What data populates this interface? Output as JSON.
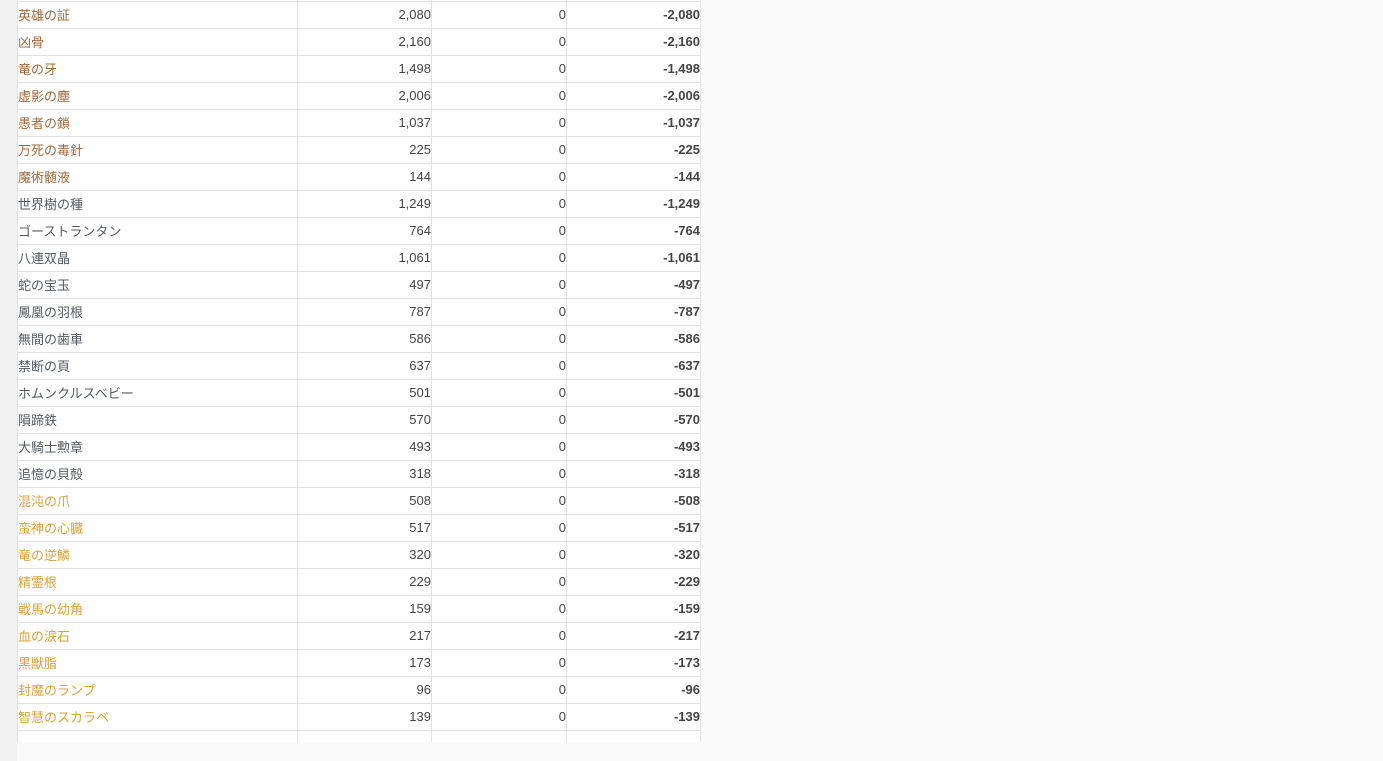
{
  "page": {
    "background": "#fafafa",
    "gutter_background": "#f2f2f2"
  },
  "table": {
    "border_color": "#e2e2e2",
    "row_background": "#ffffff",
    "number_color": "#444444",
    "shortage_color": "#ff0000",
    "name_colors": {
      "bronze": "#a0693c",
      "gray": "#555a62",
      "gold": "#d9a43e"
    },
    "columns": [
      "item-name",
      "required-quantity",
      "owned-quantity",
      "shortage"
    ],
    "rows": [
      {
        "name": "英雄の証",
        "rarity": "bronze",
        "required": "2,080",
        "owned": "0",
        "shortage": "-2,080"
      },
      {
        "name": "凶骨",
        "rarity": "bronze",
        "required": "2,160",
        "owned": "0",
        "shortage": "-2,160"
      },
      {
        "name": "竜の牙",
        "rarity": "bronze",
        "required": "1,498",
        "owned": "0",
        "shortage": "-1,498"
      },
      {
        "name": "虚影の塵",
        "rarity": "bronze",
        "required": "2,006",
        "owned": "0",
        "shortage": "-2,006"
      },
      {
        "name": "愚者の鎖",
        "rarity": "bronze",
        "required": "1,037",
        "owned": "0",
        "shortage": "-1,037"
      },
      {
        "name": "万死の毒針",
        "rarity": "bronze",
        "required": "225",
        "owned": "0",
        "shortage": "-225"
      },
      {
        "name": "魔術髄液",
        "rarity": "bronze",
        "required": "144",
        "owned": "0",
        "shortage": "-144"
      },
      {
        "name": "世界樹の種",
        "rarity": "gray",
        "required": "1,249",
        "owned": "0",
        "shortage": "-1,249"
      },
      {
        "name": "ゴーストランタン",
        "rarity": "gray",
        "required": "764",
        "owned": "0",
        "shortage": "-764"
      },
      {
        "name": "八連双晶",
        "rarity": "gray",
        "required": "1,061",
        "owned": "0",
        "shortage": "-1,061"
      },
      {
        "name": "蛇の宝玉",
        "rarity": "gray",
        "required": "497",
        "owned": "0",
        "shortage": "-497"
      },
      {
        "name": "鳳凰の羽根",
        "rarity": "gray",
        "required": "787",
        "owned": "0",
        "shortage": "-787"
      },
      {
        "name": "無間の歯車",
        "rarity": "gray",
        "required": "586",
        "owned": "0",
        "shortage": "-586"
      },
      {
        "name": "禁断の頁",
        "rarity": "gray",
        "required": "637",
        "owned": "0",
        "shortage": "-637"
      },
      {
        "name": "ホムンクルスベビー",
        "rarity": "gray",
        "required": "501",
        "owned": "0",
        "shortage": "-501"
      },
      {
        "name": "隕蹄鉄",
        "rarity": "gray",
        "required": "570",
        "owned": "0",
        "shortage": "-570"
      },
      {
        "name": "大騎士勲章",
        "rarity": "gray",
        "required": "493",
        "owned": "0",
        "shortage": "-493"
      },
      {
        "name": "追憶の貝殻",
        "rarity": "gray",
        "required": "318",
        "owned": "0",
        "shortage": "-318"
      },
      {
        "name": "混沌の爪",
        "rarity": "gold",
        "required": "508",
        "owned": "0",
        "shortage": "-508"
      },
      {
        "name": "蛮神の心臓",
        "rarity": "gold",
        "required": "517",
        "owned": "0",
        "shortage": "-517"
      },
      {
        "name": "竜の逆鱗",
        "rarity": "gold",
        "required": "320",
        "owned": "0",
        "shortage": "-320"
      },
      {
        "name": "精霊根",
        "rarity": "gold",
        "required": "229",
        "owned": "0",
        "shortage": "-229"
      },
      {
        "name": "戦馬の幼角",
        "rarity": "gold",
        "required": "159",
        "owned": "0",
        "shortage": "-159"
      },
      {
        "name": "血の涙石",
        "rarity": "gold",
        "required": "217",
        "owned": "0",
        "shortage": "-217"
      },
      {
        "name": "黒獣脂",
        "rarity": "gold",
        "required": "173",
        "owned": "0",
        "shortage": "-173"
      },
      {
        "name": "封魔のランプ",
        "rarity": "gold",
        "required": "96",
        "owned": "0",
        "shortage": "-96"
      },
      {
        "name": "智慧のスカラベ",
        "rarity": "gold",
        "required": "139",
        "owned": "0",
        "shortage": "-139"
      }
    ]
  }
}
